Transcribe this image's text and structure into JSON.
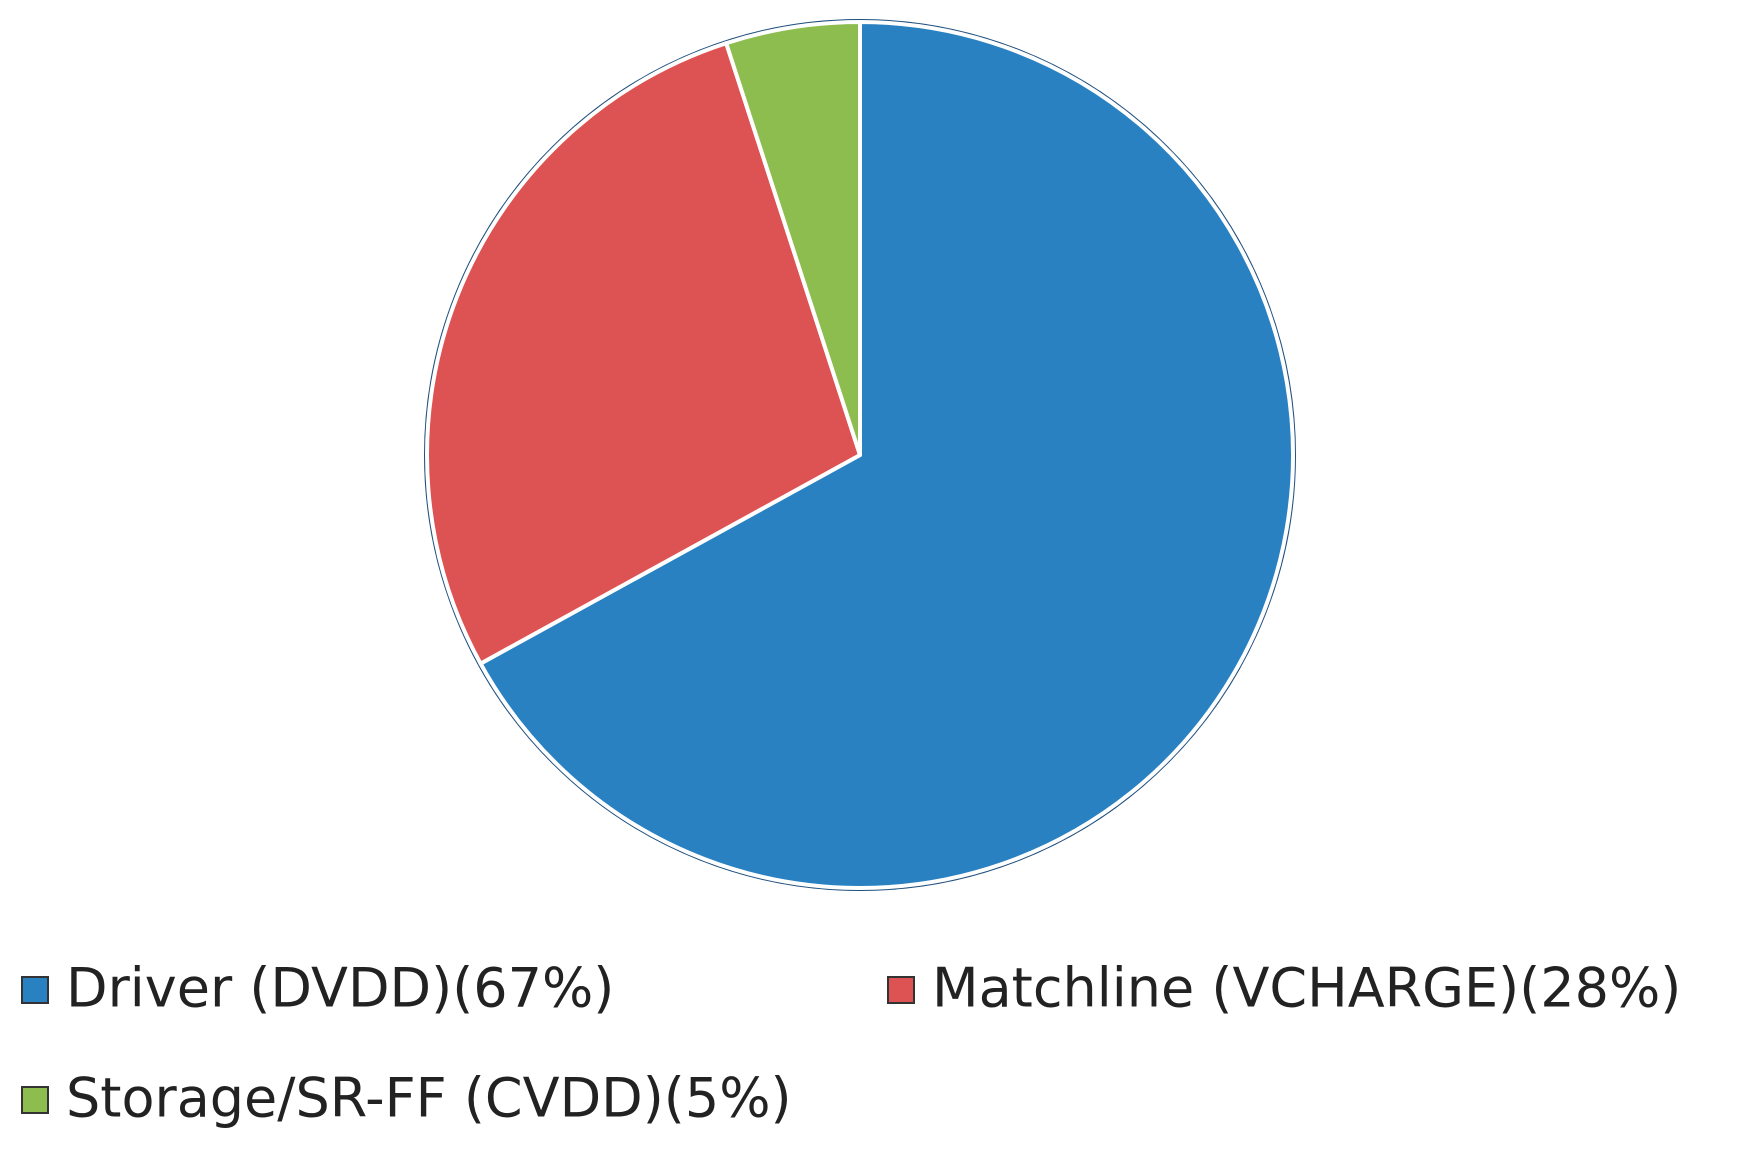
{
  "chart_data": {
    "type": "pie",
    "categories": [
      "Driver (DVDD)(67%)",
      "Matchline (VCHARGE)(28%)",
      "Storage/SR-FF (CVDD)(5%)"
    ],
    "values": [
      67,
      28,
      5
    ],
    "colors": [
      "#2a81c1",
      "#dd5252",
      "#8cbd4e"
    ]
  }
}
